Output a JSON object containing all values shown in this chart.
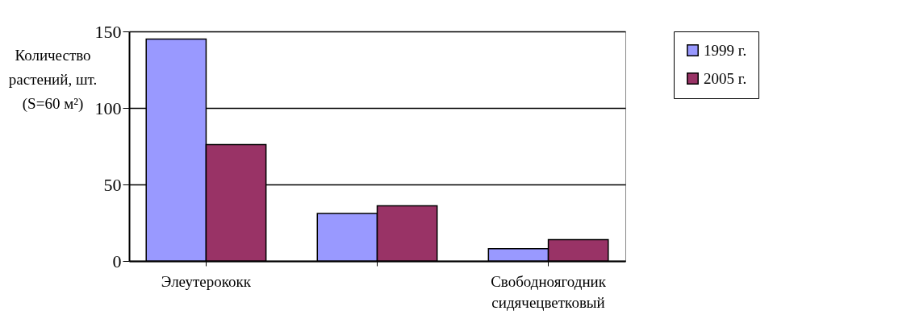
{
  "chart_data": {
    "type": "bar",
    "ylabel": "Количество растений, шт. (S=60 м²)",
    "categories": [
      "Элеутерококк",
      null,
      "Свободноягодник сидячецветковый"
    ],
    "series": [
      {
        "name": "1999 г.",
        "color": "#9999ff",
        "values": [
          145,
          31,
          8
        ]
      },
      {
        "name": "2005 г.",
        "color": "#993366",
        "values": [
          76,
          36,
          14
        ]
      }
    ],
    "ylim": [
      0,
      150
    ],
    "yticks": [
      0,
      50,
      100,
      150
    ],
    "grid": "y",
    "legend": "right"
  }
}
